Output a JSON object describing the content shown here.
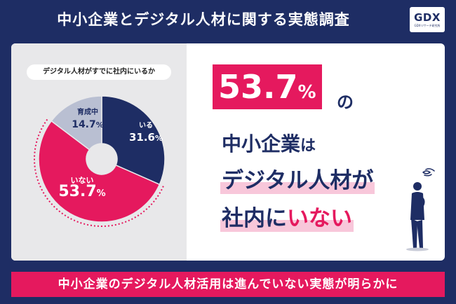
{
  "header": {
    "title": "中小企業とデジタル人材に関する実態調査",
    "logo_mark": "GDX",
    "logo_sub": "GDXリサーチ研究所"
  },
  "chart_data": {
    "type": "pie",
    "title": "デジタル人材がすでに社内にいるか",
    "slices": [
      {
        "label": "いる",
        "value": 31.6,
        "color": "#1e2d64"
      },
      {
        "label": "いない",
        "value": 53.7,
        "color": "#e5195e"
      },
      {
        "label": "育成中",
        "value": 14.7,
        "color": "#b9bfd2"
      }
    ],
    "unit": "%"
  },
  "headline": {
    "number": "53.7",
    "unit": "%",
    "particle": "の",
    "line1_a": "中小企業",
    "line1_b": "は",
    "line2": "デジタル人材が",
    "line3_a": "社内に",
    "line3_b": "いない"
  },
  "banner": {
    "text": "中小企業のデジタル人材活用は進んでいない実態が明らかに"
  }
}
